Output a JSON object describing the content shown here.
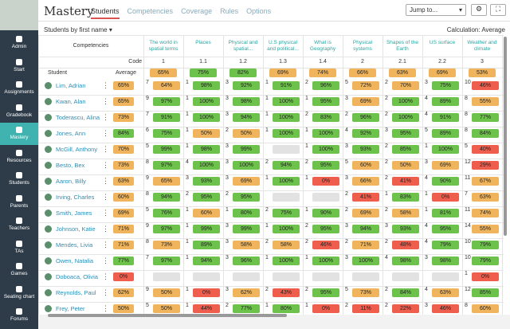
{
  "sidebar": {
    "items": [
      "Admin",
      "Start",
      "Assignments",
      "Gradebook",
      "Mastery",
      "Resources",
      "Students",
      "Parents",
      "Teachers",
      "TAs",
      "Games",
      "Seating chart",
      "Forums"
    ],
    "active": 4
  },
  "header": {
    "title": "Mastery",
    "tabs": [
      "Students",
      "Competencies",
      "Coverage",
      "Rules",
      "Options"
    ],
    "active_tab": 0,
    "jump": "Jump to..."
  },
  "toolbar": {
    "sort": "Students by first name",
    "calculation": "Calculation: Average"
  },
  "table": {
    "competencies_label": "Competencies",
    "code_label": "Code",
    "student_label": "Student",
    "average_label": "Average",
    "competencies": [
      {
        "name": "The world in spatial terms",
        "code": "1",
        "average": "65%"
      },
      {
        "name": "Places",
        "code": "1.1",
        "average": "75%"
      },
      {
        "name": "Physical and spatial...",
        "code": "1.2",
        "average": "82%"
      },
      {
        "name": "U.S physical and political...",
        "code": "1.3",
        "average": "69%"
      },
      {
        "name": "What is Geography",
        "code": "1.4",
        "average": "74%"
      },
      {
        "name": "Physical systems",
        "code": "2",
        "average": "66%"
      },
      {
        "name": "Shapes of the Earth",
        "code": "2.1",
        "average": "63%"
      },
      {
        "name": "US surface",
        "code": "2.2",
        "average": "69%"
      },
      {
        "name": "Weather and climate",
        "code": "3",
        "average": "53%"
      }
    ],
    "rows": [
      {
        "name": "Lim, Adrian",
        "average": "65%",
        "cells": [
          [
            7,
            "64%"
          ],
          [
            1,
            "98%"
          ],
          [
            3,
            "92%"
          ],
          [
            1,
            "91%"
          ],
          [
            2,
            "96%"
          ],
          [
            5,
            "72%"
          ],
          [
            2,
            "70%"
          ],
          [
            3,
            "75%"
          ],
          [
            10,
            "46%"
          ]
        ]
      },
      {
        "name": "Kwan, Alan",
        "average": "65%",
        "cells": [
          [
            9,
            "97%"
          ],
          [
            1,
            "100%"
          ],
          [
            3,
            "98%"
          ],
          [
            1,
            "100%"
          ],
          [
            1,
            "95%"
          ],
          [
            3,
            "69%"
          ],
          [
            2,
            "100%"
          ],
          [
            4,
            "89%"
          ],
          [
            8,
            "55%"
          ]
        ]
      },
      {
        "name": "Toderascu, Alina",
        "average": "73%",
        "cells": [
          [
            7,
            "91%"
          ],
          [
            1,
            "100%"
          ],
          [
            3,
            "94%"
          ],
          [
            1,
            "100%"
          ],
          [
            2,
            "83%"
          ],
          [
            2,
            "96%"
          ],
          [
            2,
            "100%"
          ],
          [
            4,
            "91%"
          ],
          [
            8,
            "77%"
          ]
        ]
      },
      {
        "name": "Jones, Ann",
        "average": "84%",
        "cells": [
          [
            6,
            "75%"
          ],
          [
            1,
            "50%"
          ],
          [
            2,
            "50%"
          ],
          [
            1,
            "100%"
          ],
          [
            1,
            "100%"
          ],
          [
            4,
            "92%"
          ],
          [
            3,
            "95%"
          ],
          [
            5,
            "89%"
          ],
          [
            8,
            "84%"
          ]
        ]
      },
      {
        "name": "McGill, Anthony",
        "average": "70%",
        "cells": [
          [
            5,
            "99%"
          ],
          [
            1,
            "98%"
          ],
          [
            3,
            "99%"
          ],
          null,
          [
            1,
            "100%"
          ],
          [
            3,
            "93%"
          ],
          [
            2,
            "85%"
          ],
          [
            1,
            "100%"
          ],
          [
            5,
            "40%"
          ]
        ]
      },
      {
        "name": "Besto, Bex",
        "average": "73%",
        "cells": [
          [
            8,
            "97%"
          ],
          [
            4,
            "100%"
          ],
          [
            3,
            "100%"
          ],
          [
            2,
            "94%"
          ],
          [
            2,
            "95%"
          ],
          [
            5,
            "60%"
          ],
          [
            2,
            "50%"
          ],
          [
            3,
            "69%"
          ],
          [
            12,
            "29%"
          ]
        ]
      },
      {
        "name": "Aaron, Billy",
        "average": "63%",
        "cells": [
          [
            9,
            "65%"
          ],
          [
            3,
            "93%"
          ],
          [
            3,
            "69%"
          ],
          [
            1,
            "100%"
          ],
          [
            1,
            "0%"
          ],
          [
            3,
            "66%"
          ],
          [
            2,
            "41%"
          ],
          [
            4,
            "90%"
          ],
          [
            11,
            "67%"
          ]
        ]
      },
      {
        "name": "Irving, Charles",
        "average": "60%",
        "cells": [
          [
            8,
            "94%"
          ],
          [
            2,
            "95%"
          ],
          [
            2,
            "95%"
          ],
          null,
          null,
          [
            2,
            "41%"
          ],
          [
            1,
            "83%"
          ],
          [
            1,
            "0%"
          ],
          [
            7,
            "63%"
          ]
        ]
      },
      {
        "name": "Smith, James",
        "average": "69%",
        "cells": [
          [
            5,
            "76%"
          ],
          [
            1,
            "60%"
          ],
          [
            1,
            "80%"
          ],
          [
            2,
            "75%"
          ],
          [
            1,
            "90%"
          ],
          [
            2,
            "69%"
          ],
          [
            2,
            "58%"
          ],
          [
            1,
            "81%"
          ],
          [
            11,
            "74%"
          ]
        ]
      },
      {
        "name": "Johnson, Katie",
        "average": "71%",
        "cells": [
          [
            9,
            "97%"
          ],
          [
            1,
            "99%"
          ],
          [
            3,
            "99%"
          ],
          [
            1,
            "100%"
          ],
          [
            2,
            "95%"
          ],
          [
            3,
            "94%"
          ],
          [
            3,
            "93%"
          ],
          [
            4,
            "95%"
          ],
          [
            14,
            "55%"
          ]
        ]
      },
      {
        "name": "Mendes, Livia",
        "average": "71%",
        "cells": [
          [
            8,
            "73%"
          ],
          [
            1,
            "89%"
          ],
          [
            3,
            "58%"
          ],
          [
            2,
            "58%"
          ],
          [
            2,
            "46%"
          ],
          [
            2,
            "71%"
          ],
          [
            2,
            "48%"
          ],
          [
            4,
            "79%"
          ],
          [
            10,
            "79%"
          ]
        ]
      },
      {
        "name": "Owen, Natalia",
        "average": "77%",
        "cells": [
          [
            7,
            "97%"
          ],
          [
            1,
            "94%"
          ],
          [
            3,
            "96%"
          ],
          [
            1,
            "100%"
          ],
          [
            1,
            "100%"
          ],
          [
            3,
            "100%"
          ],
          [
            4,
            "98%"
          ],
          [
            3,
            "98%"
          ],
          [
            10,
            "79%"
          ]
        ]
      },
      {
        "name": "Doboaca, Olivia",
        "average": "0%",
        "cells": [
          null,
          null,
          null,
          null,
          null,
          null,
          null,
          null,
          [
            1,
            "0%"
          ]
        ]
      },
      {
        "name": "Reynolds, Paul",
        "average": "62%",
        "cells": [
          [
            9,
            "50%"
          ],
          [
            1,
            "0%"
          ],
          [
            3,
            "62%"
          ],
          [
            2,
            "43%"
          ],
          [
            2,
            "95%"
          ],
          [
            5,
            "73%"
          ],
          [
            2,
            "84%"
          ],
          [
            4,
            "63%"
          ],
          [
            12,
            "85%"
          ]
        ]
      },
      {
        "name": "Frey, Peter",
        "average": "50%",
        "cells": [
          [
            5,
            "50%"
          ],
          [
            1,
            "44%"
          ],
          [
            2,
            "77%"
          ],
          [
            1,
            "80%"
          ],
          [
            1,
            "0%"
          ],
          [
            2,
            "11%"
          ],
          [
            2,
            "22%"
          ],
          [
            3,
            "46%"
          ],
          [
            8,
            "60%"
          ]
        ]
      }
    ]
  }
}
